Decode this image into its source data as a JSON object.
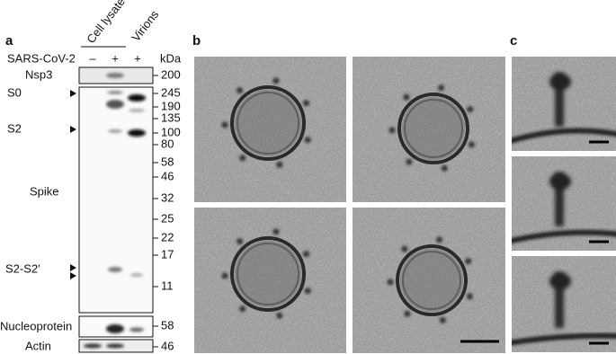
{
  "panel_a": {
    "label": "a",
    "headers": [
      "Cell lysate",
      "Virions"
    ],
    "condition_label": "SARS-CoV-2",
    "condition_signs": [
      "–",
      "+",
      "+"
    ],
    "unit": "kDa",
    "band_labels": [
      "Nsp3",
      "S0",
      "S2",
      "Spike",
      "S2-S2′",
      "Nucleoprotein",
      "Actin"
    ],
    "markers": [
      200,
      245,
      190,
      135,
      100,
      80,
      58,
      46,
      32,
      25,
      22,
      17,
      11,
      58,
      46
    ]
  },
  "panel_b": {
    "label": "b"
  },
  "panel_c": {
    "label": "c"
  }
}
